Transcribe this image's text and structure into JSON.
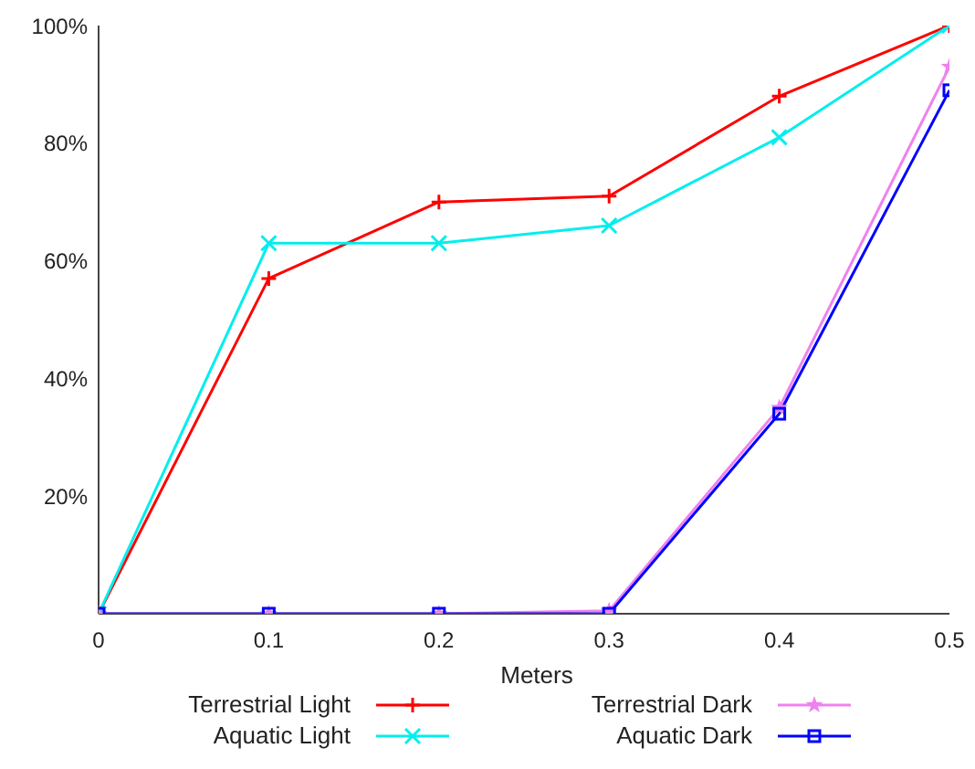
{
  "chart_data": {
    "type": "line",
    "xlabel": "Meters",
    "x": [
      0,
      0.1,
      0.2,
      0.3,
      0.4,
      0.5
    ],
    "xlim": [
      0,
      0.5
    ],
    "xticks": [
      0,
      0.1,
      0.2,
      0.3,
      0.4,
      0.5
    ],
    "ylim": [
      0,
      100
    ],
    "yticks": [
      {
        "value": 20,
        "label": "20%"
      },
      {
        "value": 40,
        "label": "40%"
      },
      {
        "value": 60,
        "label": "60%"
      },
      {
        "value": 80,
        "label": "80%"
      },
      {
        "value": 100,
        "label": "100%"
      }
    ],
    "grid": false,
    "legend": "bottom",
    "series": [
      {
        "name": "Terrestrial Light",
        "color": "#ff0000",
        "marker": "cross",
        "values": [
          0,
          57,
          70,
          71,
          88,
          100
        ]
      },
      {
        "name": "Aquatic Light",
        "color": "#00eeee",
        "marker": "cross",
        "values": [
          0,
          63,
          63,
          66,
          81,
          100
        ]
      },
      {
        "name": "Terrestrial Dark",
        "color": "#ee82ee",
        "marker": "star",
        "values": [
          0,
          0,
          0,
          0.5,
          35,
          93
        ]
      },
      {
        "name": "Aquatic Dark",
        "color": "#0000ff",
        "marker": "square",
        "values": [
          0,
          0,
          0,
          0,
          34,
          89
        ]
      }
    ]
  }
}
